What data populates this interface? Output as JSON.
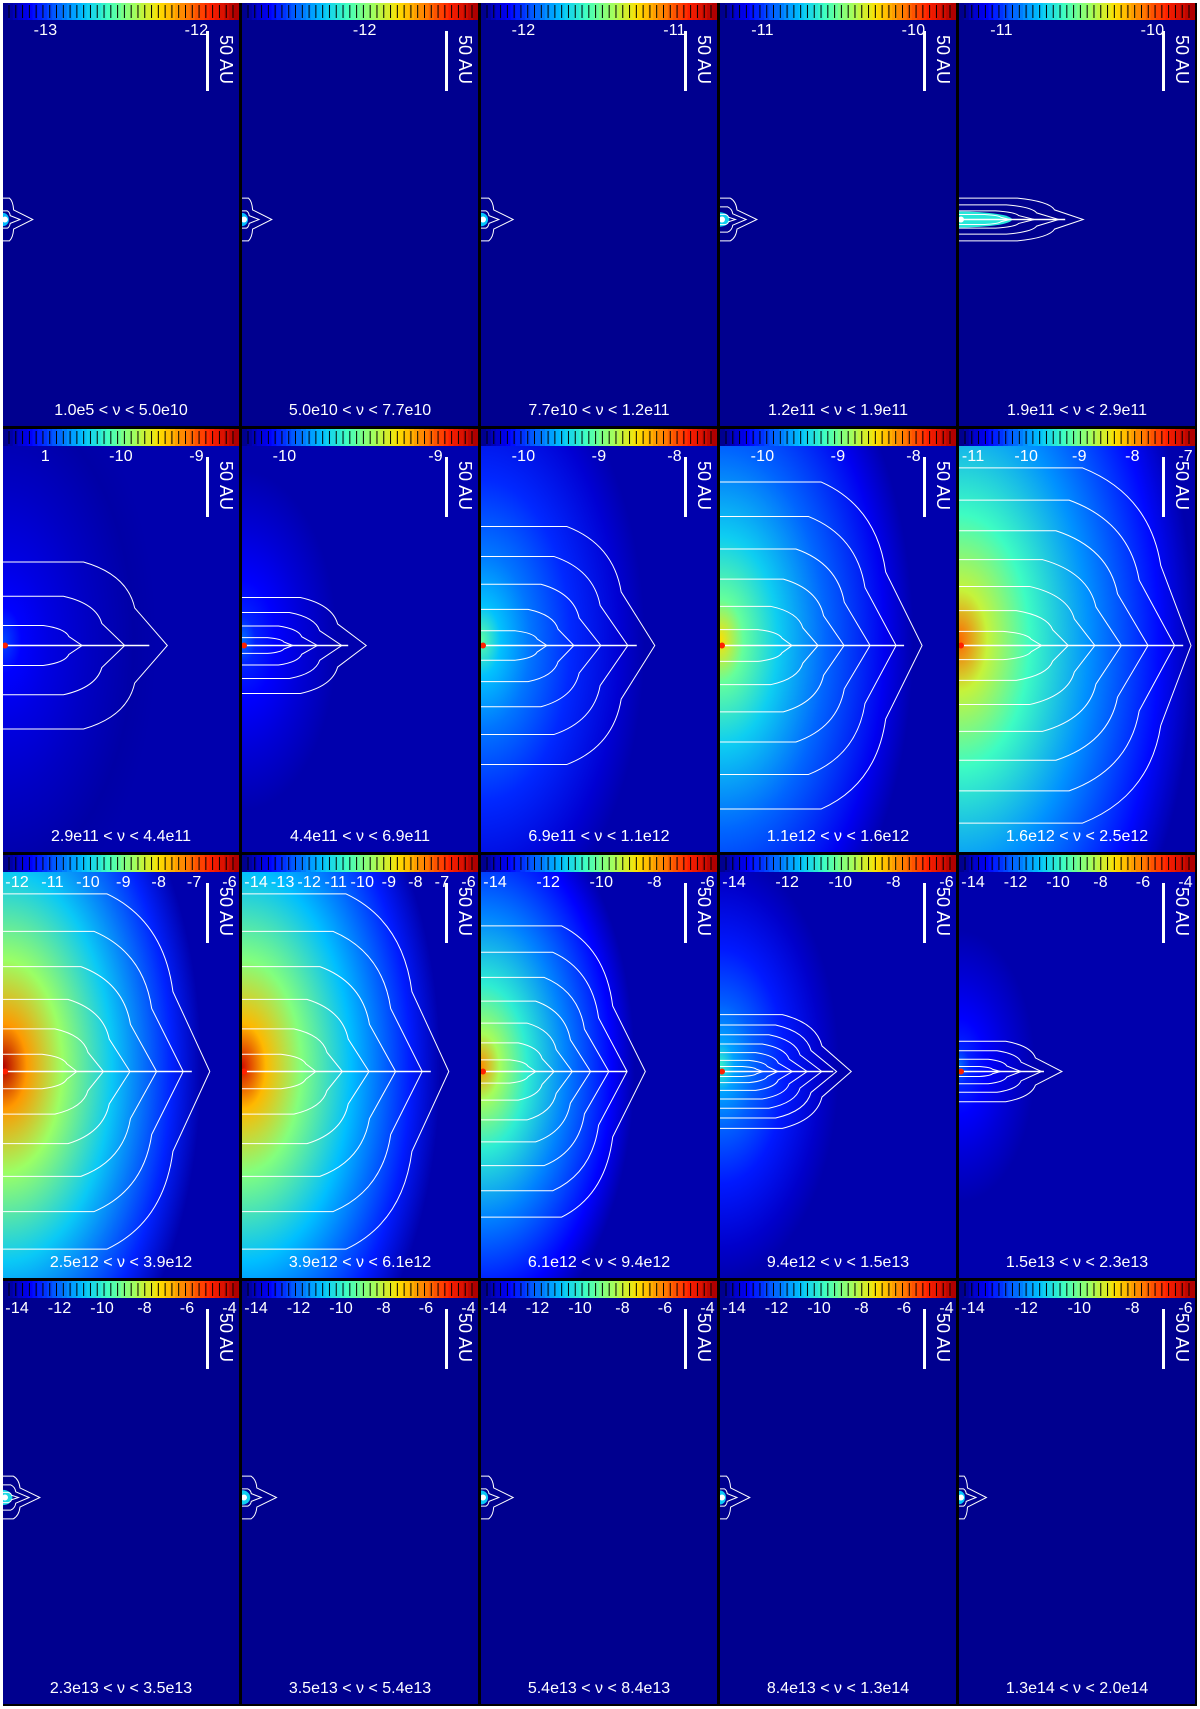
{
  "scale_label": "50 AU",
  "panels": [
    {
      "range": "1.0e5 < ν < 5.0e10",
      "ticks": [
        "-13",
        "-12"
      ],
      "level": 0.03,
      "contours": 2,
      "extent": 0.05,
      "halo": 0.0
    },
    {
      "range": "5.0e10 < ν < 7.7e10",
      "ticks": [
        "-12"
      ],
      "level": 0.03,
      "contours": 2,
      "extent": 0.05,
      "halo": 0.0
    },
    {
      "range": "7.7e10 < ν < 1.2e11",
      "ticks": [
        "-12",
        "-11"
      ],
      "level": 0.04,
      "contours": 2,
      "extent": 0.06,
      "halo": 0.0
    },
    {
      "range": "1.2e11 < ν < 1.9e11",
      "ticks": [
        "-11",
        "-10"
      ],
      "level": 0.06,
      "contours": 3,
      "extent": 0.08,
      "halo": 0.0
    },
    {
      "range": "1.9e11 < ν < 2.9e11",
      "ticks": [
        "-11",
        "-10"
      ],
      "level": 0.1,
      "contours": 4,
      "extent": 0.45,
      "halo": 0.0
    },
    {
      "range": "2.9e11 < ν < 4.4e11",
      "ticks": [
        "1",
        "-10",
        "-9"
      ],
      "level": 0.15,
      "contours": 3,
      "extent": 0.62,
      "halo": 0.35
    },
    {
      "range": "4.4e11 < ν < 6.9e11",
      "ticks": [
        "-10",
        "-9"
      ],
      "level": 0.2,
      "contours": 4,
      "extent": 0.45,
      "halo": 0.15
    },
    {
      "range": "6.9e11 < ν < 1.1e12",
      "ticks": [
        "-10",
        "-9",
        "-8"
      ],
      "level": 0.45,
      "contours": 5,
      "extent": 0.66,
      "halo": 0.55
    },
    {
      "range": "1.1e12 < ν < 1.6e12",
      "ticks": [
        "-10",
        "-9",
        "-8"
      ],
      "level": 0.65,
      "contours": 6,
      "extent": 0.78,
      "halo": 0.8
    },
    {
      "range": "1.6e12 < ν < 2.5e12",
      "ticks": [
        "-11",
        "-10",
        "-9",
        "-8",
        "-7"
      ],
      "level": 0.8,
      "contours": 7,
      "extent": 0.95,
      "halo": 1.0
    },
    {
      "range": "2.5e12 < ν < 3.9e12",
      "ticks": [
        "-12",
        "-11",
        "-10",
        "-9",
        "-8",
        "-7",
        "-6"
      ],
      "level": 1.0,
      "contours": 6,
      "extent": 0.8,
      "halo": 1.0
    },
    {
      "range": "3.9e12 < ν < 6.1e12",
      "ticks": [
        "-14",
        "-13",
        "-12",
        "-11",
        "-10",
        "-9",
        "-8",
        "-7",
        "-6"
      ],
      "level": 0.95,
      "contours": 6,
      "extent": 0.8,
      "halo": 1.0
    },
    {
      "range": "6.1e12 < ν < 9.4e12",
      "ticks": [
        "-14",
        "-12",
        "-10",
        "-8",
        "-6"
      ],
      "level": 0.75,
      "contours": 7,
      "extent": 0.62,
      "halo": 0.7
    },
    {
      "range": "9.4e12 < ν < 1.5e13",
      "ticks": [
        "-14",
        "-12",
        "-10",
        "-8",
        "-6"
      ],
      "level": 0.4,
      "contours": 7,
      "extent": 0.48,
      "halo": 0.2
    },
    {
      "range": "1.5e13 < ν < 2.3e13",
      "ticks": [
        "-14",
        "-12",
        "-10",
        "-8",
        "-6",
        "-4"
      ],
      "level": 0.2,
      "contours": 4,
      "extent": 0.36,
      "halo": 0.05
    },
    {
      "range": "2.3e13 < ν < 3.5e13",
      "ticks": [
        "-14",
        "-12",
        "-10",
        "-8",
        "-6",
        "-4"
      ],
      "level": 0.08,
      "contours": 3,
      "extent": 0.08,
      "halo": 0.0
    },
    {
      "range": "3.5e13 < ν < 5.4e13",
      "ticks": [
        "-14",
        "-12",
        "-10",
        "-8",
        "-6",
        "-4"
      ],
      "level": 0.06,
      "contours": 2,
      "extent": 0.07,
      "halo": 0.0
    },
    {
      "range": "5.4e13 < ν < 8.4e13",
      "ticks": [
        "-14",
        "-12",
        "-10",
        "-8",
        "-6",
        "-4"
      ],
      "level": 0.05,
      "contours": 2,
      "extent": 0.06,
      "halo": 0.0
    },
    {
      "range": "8.4e13 < ν < 1.3e14",
      "ticks": [
        "-14",
        "-12",
        "-10",
        "-8",
        "-6",
        "-4"
      ],
      "level": 0.05,
      "contours": 2,
      "extent": 0.05,
      "halo": 0.0
    },
    {
      "range": "1.3e14 < ν < 2.0e14",
      "ticks": [
        "-14",
        "-12",
        "-10",
        "-8",
        "-6"
      ],
      "level": 0.04,
      "contours": 2,
      "extent": 0.04,
      "halo": 0.0
    }
  ]
}
